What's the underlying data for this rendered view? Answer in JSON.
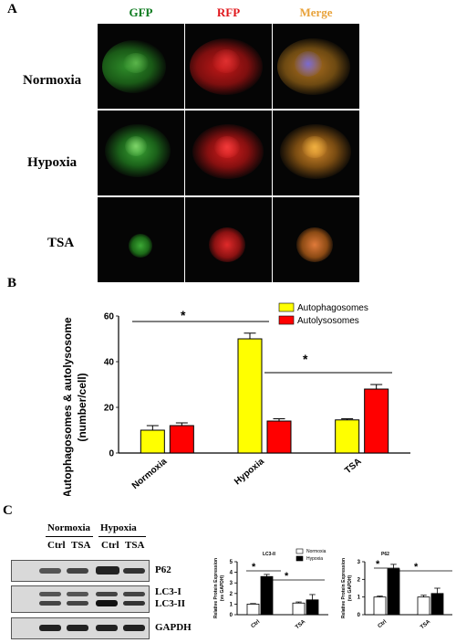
{
  "panelA": {
    "letter": "A",
    "columns": [
      {
        "label": "GFP",
        "color": "#0b7a1e"
      },
      {
        "label": "RFP",
        "color": "#e0161b"
      },
      {
        "label": "Merge",
        "color": "#e8a23a"
      }
    ],
    "rows": [
      "Normoxia",
      "Hypoxia",
      "TSA"
    ]
  },
  "panelB": {
    "letter": "B",
    "ylabel_line1": "Autophagosomes & autolysosome",
    "ylabel_line2": "(number/cell)",
    "significance": "*"
  },
  "panelC": {
    "letter": "C",
    "groups": [
      "Normoxia",
      "Hypoxia"
    ],
    "lanes": [
      "Ctrl",
      "TSA",
      "Ctrl",
      "TSA"
    ],
    "blot_labels": [
      "P62",
      "LC3-I",
      "LC3-II",
      "GAPDH"
    ],
    "significance": "*"
  },
  "chart_data": [
    {
      "type": "bar",
      "categories": [
        "Normoxia",
        "Hypoxia",
        "TSA"
      ],
      "series": [
        {
          "name": "Autophagosomes",
          "values": [
            10,
            50,
            14.5
          ],
          "errors": [
            2,
            2.5,
            0.5
          ],
          "color": "#ffff00"
        },
        {
          "name": "Autolysosomes",
          "values": [
            12,
            14,
            28
          ],
          "errors": [
            1.2,
            1,
            2
          ],
          "color": "#ff0000"
        }
      ],
      "ylim": [
        0,
        60
      ],
      "yticks": [
        0,
        20,
        40,
        60
      ],
      "legend": "top-right"
    },
    {
      "type": "bar",
      "title": "LC3-II",
      "ylabel": "Relative Protein Expression (vs GAPDH)",
      "categories": [
        "Ctrl",
        "TSA"
      ],
      "series": [
        {
          "name": "Normoxia",
          "values": [
            1.0,
            1.1
          ],
          "errors": [
            0.05,
            0.1
          ],
          "color": "#ffffff"
        },
        {
          "name": "Hypoxia",
          "values": [
            3.6,
            1.4
          ],
          "errors": [
            0.2,
            0.5
          ],
          "color": "#000000"
        }
      ],
      "ylim": [
        0,
        5
      ],
      "yticks": [
        0,
        1,
        2,
        3,
        4,
        5
      ],
      "legend": "top-right"
    },
    {
      "type": "bar",
      "title": "P62",
      "ylabel": "Relative Protein Expression (vs GAPDH)",
      "categories": [
        "Ctrl",
        "TSA"
      ],
      "series": [
        {
          "name": "Normoxia",
          "values": [
            1.0,
            1.0
          ],
          "errors": [
            0.05,
            0.1
          ],
          "color": "#ffffff"
        },
        {
          "name": "Hypoxia",
          "values": [
            2.6,
            1.2
          ],
          "errors": [
            0.25,
            0.3
          ],
          "color": "#000000"
        }
      ],
      "ylim": [
        0,
        3
      ],
      "yticks": [
        0,
        1,
        2,
        3
      ],
      "legend": "none"
    }
  ]
}
